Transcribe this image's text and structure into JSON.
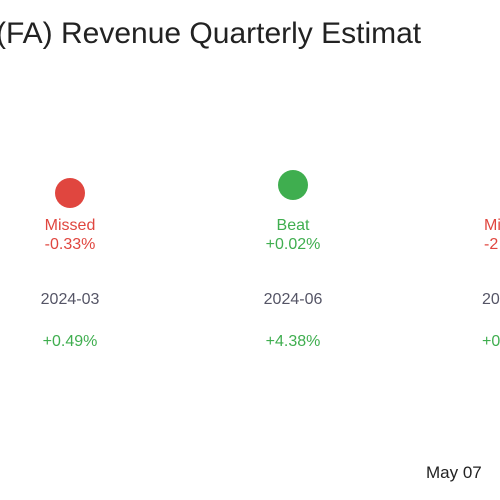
{
  "chart_data": {
    "type": "table",
    "title": "(FA) Revenue Quarterly Estimat",
    "colors": {
      "missed": "#e0463f",
      "beat": "#3fae4f"
    },
    "quarters": [
      {
        "status": "Missed",
        "surprise": "-0.33%",
        "date": "2024-03",
        "growth": "+0.49%",
        "surprise_value": -0.33,
        "growth_value": 0.49
      },
      {
        "status": "Beat",
        "surprise": "+0.02%",
        "date": "2024-06",
        "growth": "+4.38%",
        "surprise_value": 0.02,
        "growth_value": 4.38
      },
      {
        "status": "Mi",
        "surprise": "-2",
        "date": "20",
        "growth": "+0",
        "surprise_value": null,
        "growth_value": null
      }
    ]
  },
  "footer": {
    "date": "May 07"
  }
}
